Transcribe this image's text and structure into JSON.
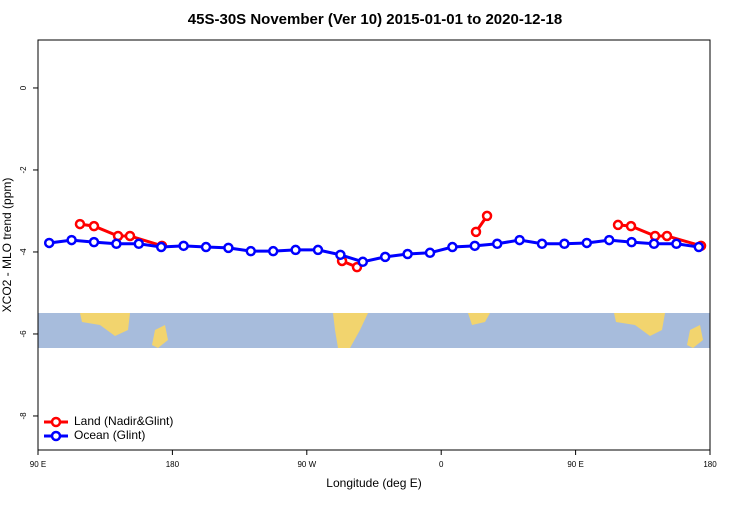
{
  "chart_data": {
    "type": "line",
    "title": "45S-30S November (Ver 10)   2015-01-01 to 2020-12-18",
    "x_label": "Longitude (deg E)",
    "y_label": "XCO2 - MLO trend (ppm)",
    "xlim": [
      90,
      540
    ],
    "xticks": [
      {
        "value": 90,
        "label": "90 E"
      },
      180,
      {
        "value": 270,
        "label": "90 W"
      },
      {
        "value": 360,
        "label": "0"
      },
      {
        "value": 450,
        "label": "90 E"
      },
      {
        "value": 540,
        "label": "180"
      }
    ],
    "ylim": [
      -8.83,
      1.17
    ],
    "yticks": [
      0,
      -2,
      -4,
      -6,
      -8
    ],
    "legend": "bottom-left",
    "series": [
      {
        "name": "Land (Nadir&Glint)",
        "color": "#ff0000",
        "x": [
          118.1,
          127.5,
          143.6,
          151.6,
          173.0,
          null,
          293.6,
          303.6,
          null,
          383.3,
          390.7,
          null,
          478.4,
          487.1,
          503.2,
          511.2,
          534.0
        ],
        "values": [
          -3.32,
          -3.37,
          -3.61,
          -3.61,
          -3.85,
          null,
          -4.22,
          -4.37,
          null,
          -3.51,
          -3.12,
          null,
          -3.34,
          -3.37,
          -3.61,
          -3.61,
          -3.85
        ]
      },
      {
        "name": "Ocean (Glint)",
        "color": "#0000ff",
        "x": [
          97.5,
          112.5,
          127.5,
          142.5,
          157.5,
          172.5,
          187.5,
          202.5,
          217.5,
          232.5,
          247.5,
          262.5,
          277.5,
          292.5,
          307.5,
          322.5,
          337.5,
          352.5,
          367.5,
          382.5,
          397.5,
          412.5,
          427.5,
          442.5,
          457.5,
          472.5,
          487.5,
          502.5,
          517.5,
          532.5
        ],
        "values": [
          -3.78,
          -3.71,
          -3.76,
          -3.8,
          -3.8,
          -3.88,
          -3.85,
          -3.88,
          -3.9,
          -3.98,
          -3.98,
          -3.95,
          -3.95,
          -4.07,
          -4.24,
          -4.12,
          -4.05,
          -4.02,
          -3.88,
          -3.85,
          -3.8,
          -3.71,
          -3.8,
          -3.8,
          -3.78,
          -3.71,
          -3.76,
          -3.8,
          -3.8,
          -3.88
        ]
      }
    ]
  }
}
